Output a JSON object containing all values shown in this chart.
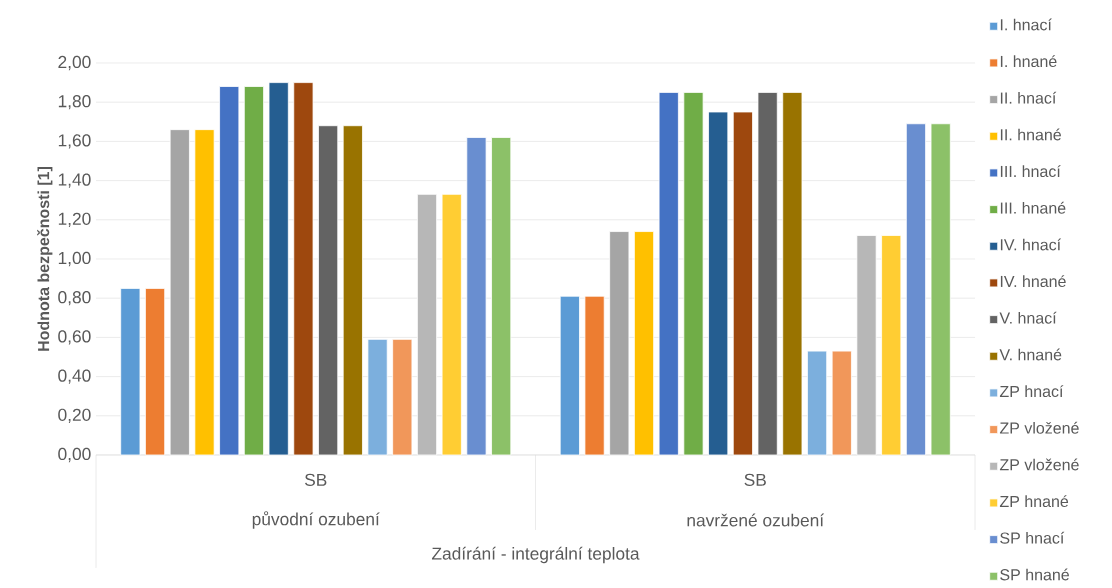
{
  "chart_data": {
    "type": "bar",
    "categories": [
      "SB",
      "SB"
    ],
    "annotations": [
      "původní ozubení",
      "navržené ozubení"
    ],
    "xlabel": "Zadírání - integrální teplota",
    "ylabel": "Hodnota bezpečnosti [1]",
    "ylim": [
      0,
      2
    ],
    "yticks": [
      {
        "value": 0,
        "label": "0,00"
      },
      {
        "value": 0.2,
        "label": "0,20"
      },
      {
        "value": 0.4,
        "label": "0,40"
      },
      {
        "value": 0.6,
        "label": "0,60"
      },
      {
        "value": 0.8,
        "label": "0,80"
      },
      {
        "value": 1.0,
        "label": "1,00"
      },
      {
        "value": 1.2,
        "label": "1,20"
      },
      {
        "value": 1.4,
        "label": "1,40"
      },
      {
        "value": 1.6,
        "label": "1,60"
      },
      {
        "value": 1.8,
        "label": "1,80"
      },
      {
        "value": 2.0,
        "label": "2,00"
      }
    ],
    "grid": "y",
    "legend": "right",
    "series": [
      {
        "name": "I. hnací",
        "color": "#5b9bd5",
        "values": [
          0.85,
          0.81
        ]
      },
      {
        "name": "I. hnané",
        "color": "#ed7d31",
        "values": [
          0.85,
          0.81
        ]
      },
      {
        "name": "II. hnací",
        "color": "#a5a5a5",
        "values": [
          1.66,
          1.14
        ]
      },
      {
        "name": "II. hnané",
        "color": "#ffc000",
        "values": [
          1.66,
          1.14
        ]
      },
      {
        "name": "III. hnací",
        "color": "#4472c4",
        "values": [
          1.88,
          1.85
        ]
      },
      {
        "name": "III. hnané",
        "color": "#70ad47",
        "values": [
          1.88,
          1.85
        ]
      },
      {
        "name": "IV. hnací",
        "color": "#255e91",
        "values": [
          1.9,
          1.75
        ]
      },
      {
        "name": "IV. hnané",
        "color": "#9e480e",
        "values": [
          1.9,
          1.75
        ]
      },
      {
        "name": "V. hnací",
        "color": "#636363",
        "values": [
          1.68,
          1.85
        ]
      },
      {
        "name": "V. hnané",
        "color": "#997300",
        "values": [
          1.68,
          1.85
        ]
      },
      {
        "name": "ZP hnací",
        "color": "#7cafdd",
        "values": [
          0.59,
          0.53
        ]
      },
      {
        "name": "ZP vložené",
        "color": "#f1975a",
        "values": [
          0.59,
          0.53
        ]
      },
      {
        "name": "ZP vložené",
        "color": "#b7b7b7",
        "values": [
          1.33,
          1.12
        ]
      },
      {
        "name": "ZP hnané",
        "color": "#ffcd33",
        "values": [
          1.33,
          1.12
        ]
      },
      {
        "name": "SP hnací",
        "color": "#698ed0",
        "values": [
          1.62,
          1.69
        ]
      },
      {
        "name": "SP hnané",
        "color": "#8cc168",
        "values": [
          1.62,
          1.69
        ]
      }
    ]
  }
}
